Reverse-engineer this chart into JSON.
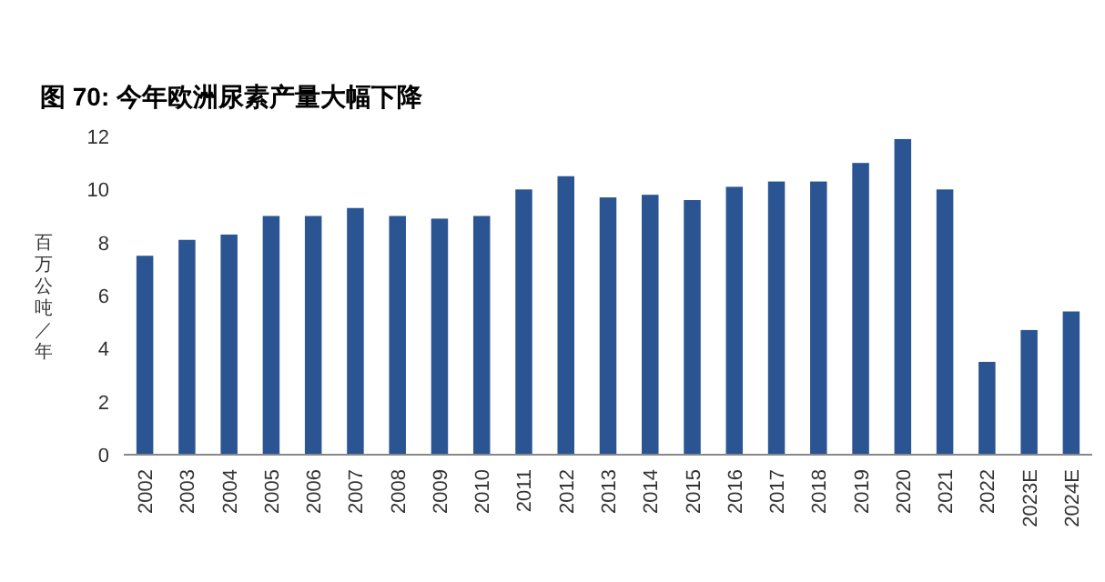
{
  "chart_data": {
    "type": "bar",
    "title": "图 70:  今年欧洲尿素产量大幅下降",
    "ylabel": "百万公吨／年",
    "categories": [
      "2002",
      "2003",
      "2004",
      "2005",
      "2006",
      "2007",
      "2008",
      "2009",
      "2010",
      "2011",
      "2012",
      "2013",
      "2014",
      "2015",
      "2016",
      "2017",
      "2018",
      "2019",
      "2020",
      "2021",
      "2022",
      "2023E",
      "2024E"
    ],
    "values": [
      7.5,
      8.1,
      8.3,
      9.0,
      9.0,
      9.3,
      9.0,
      8.9,
      9.0,
      10.0,
      10.5,
      9.7,
      9.8,
      9.6,
      10.1,
      10.3,
      10.3,
      11.0,
      11.9,
      10.0,
      3.5,
      4.7,
      5.4
    ],
    "color": "#2b5592",
    "ylim": [
      0,
      12
    ],
    "yticks": [
      0,
      2,
      4,
      6,
      8,
      10,
      12
    ],
    "grid": false
  }
}
